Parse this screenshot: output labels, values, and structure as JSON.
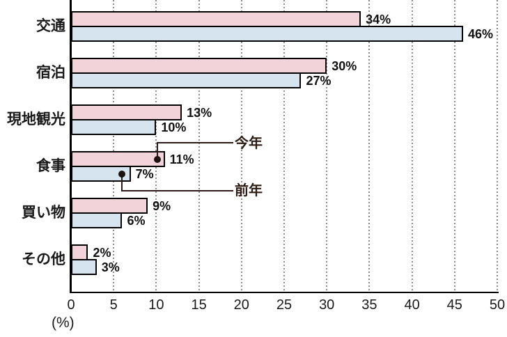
{
  "chart_data": {
    "type": "bar",
    "orientation": "horizontal",
    "title": "",
    "categories": [
      "交通",
      "宿泊",
      "現地観光",
      "食事",
      "買い物",
      "その他"
    ],
    "series": [
      {
        "name": "今年",
        "color": "#f2d3d9",
        "values": [
          34,
          30,
          13,
          11,
          9,
          2
        ]
      },
      {
        "name": "前年",
        "color": "#d5e4ef",
        "values": [
          46,
          27,
          10,
          7,
          6,
          3
        ]
      }
    ],
    "value_suffix": "%",
    "xlabel": "(%)",
    "xlim": [
      0,
      50
    ],
    "xticks": [
      0,
      5,
      10,
      15,
      20,
      25,
      30,
      35,
      40,
      45,
      50
    ],
    "grid": "vertical-dotted",
    "legend_position": "callout-on-食事-bars"
  },
  "colors": {
    "bar_border": "#000000",
    "axis": "#000000",
    "gridline": "#8c8c8c",
    "callout": "#2b1b14",
    "callout_dot": "#1d120d",
    "text": "#1a1a1a"
  }
}
